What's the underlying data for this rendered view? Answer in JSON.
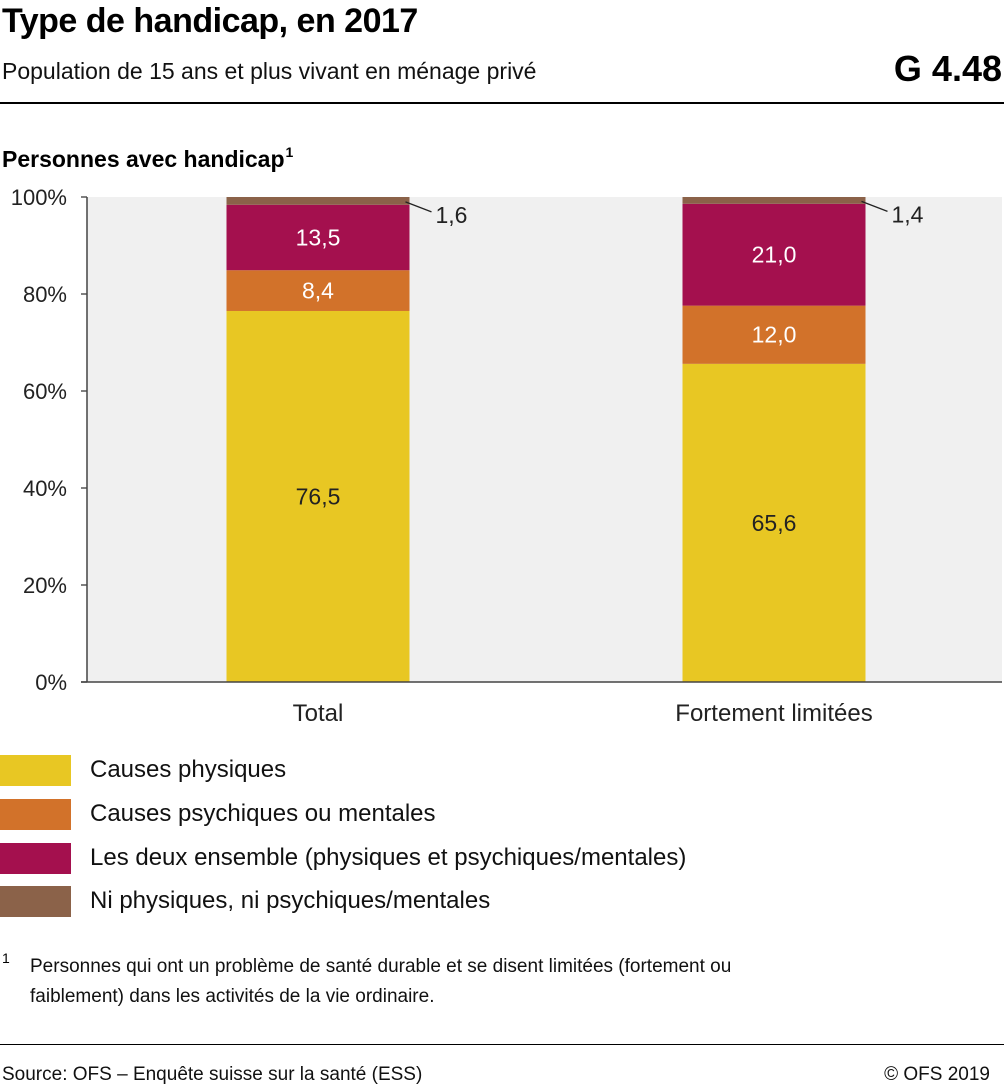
{
  "header": {
    "title": "Type de handicap, en 2017",
    "subtitle": "Population de 15 ans et plus vivant en ménage privé",
    "code": "G 4.48"
  },
  "section": {
    "label": "Personnes avec handicap",
    "footnote_ref": "1"
  },
  "chart_data": {
    "type": "bar",
    "stacked": true,
    "categories": [
      "Total",
      "Fortement limitées"
    ],
    "series": [
      {
        "name": "Causes physiques",
        "values": [
          76.5,
          65.6
        ],
        "color": "#e8c723",
        "label_color": "#222222"
      },
      {
        "name": "Causes psychiques ou mentales",
        "values": [
          8.4,
          12.0
        ],
        "color": "#d2722a",
        "label_color": "#ffffff"
      },
      {
        "name": "Les deux ensemble (physiques et psychiques/mentales)",
        "values": [
          13.5,
          21.0
        ],
        "color": "#a4104e",
        "label_color": "#ffffff"
      },
      {
        "name": "Ni physiques, ni psychiques/mentales",
        "values": [
          1.6,
          1.4
        ],
        "color": "#8b6249",
        "label_color": "#222222"
      }
    ],
    "value_labels": [
      [
        "76,5",
        "65,6"
      ],
      [
        "8,4",
        "12,0"
      ],
      [
        "13,5",
        "21,0"
      ],
      [
        "1,6",
        "1,4"
      ]
    ],
    "yticks": [
      "0%",
      "20%",
      "40%",
      "60%",
      "80%",
      "100%"
    ],
    "ylim": [
      0,
      100
    ],
    "grid": false,
    "plot_background": "#f0f0f0",
    "legend_position": "bottom"
  },
  "footnote": {
    "mark": "1",
    "text": "Personnes qui ont un problème de santé durable et se disent limitées (fortement ou faiblement) dans les activités de la vie ordinaire."
  },
  "footer": {
    "source": "Source: OFS – Enquête suisse sur la santé (ESS)",
    "copyright": "© OFS 2019"
  }
}
